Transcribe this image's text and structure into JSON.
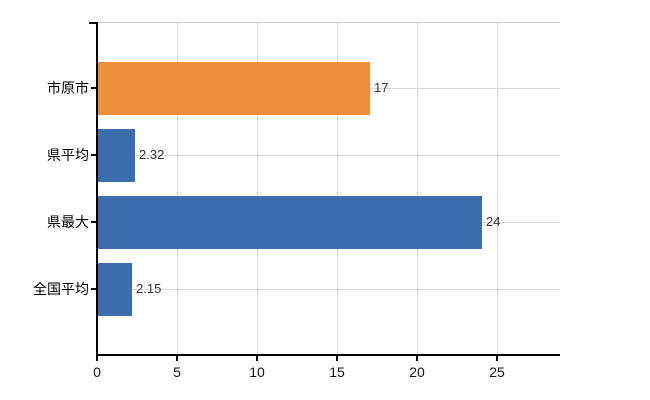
{
  "chart_data": {
    "type": "bar",
    "orientation": "horizontal",
    "title": "",
    "xlabel": "",
    "ylabel": "",
    "categories": [
      "市原市",
      "県平均",
      "県最大",
      "全国平均"
    ],
    "values": [
      17,
      2.32,
      24,
      2.15
    ],
    "value_labels": [
      "17",
      "2.32",
      "24",
      "2.15"
    ],
    "bar_colors": [
      "#ed8e3b",
      "#3c6eae",
      "#3c6eae",
      "#3c6eae"
    ],
    "x_ticks": [
      0,
      5,
      10,
      15,
      20,
      25
    ],
    "x_tick_labels": [
      "0",
      "5",
      "10",
      "15",
      "20",
      "25"
    ],
    "xlim": [
      0,
      28.9
    ],
    "grid": true,
    "legend": false
  },
  "style": {
    "background": "#ffffff",
    "axis_color": "#000000",
    "grid_color": "#d6d6d6",
    "plot_border_color": "#cccccc",
    "category_label_color": "#000000",
    "value_label_color": "#333333",
    "tick_label_color": "#111111"
  }
}
